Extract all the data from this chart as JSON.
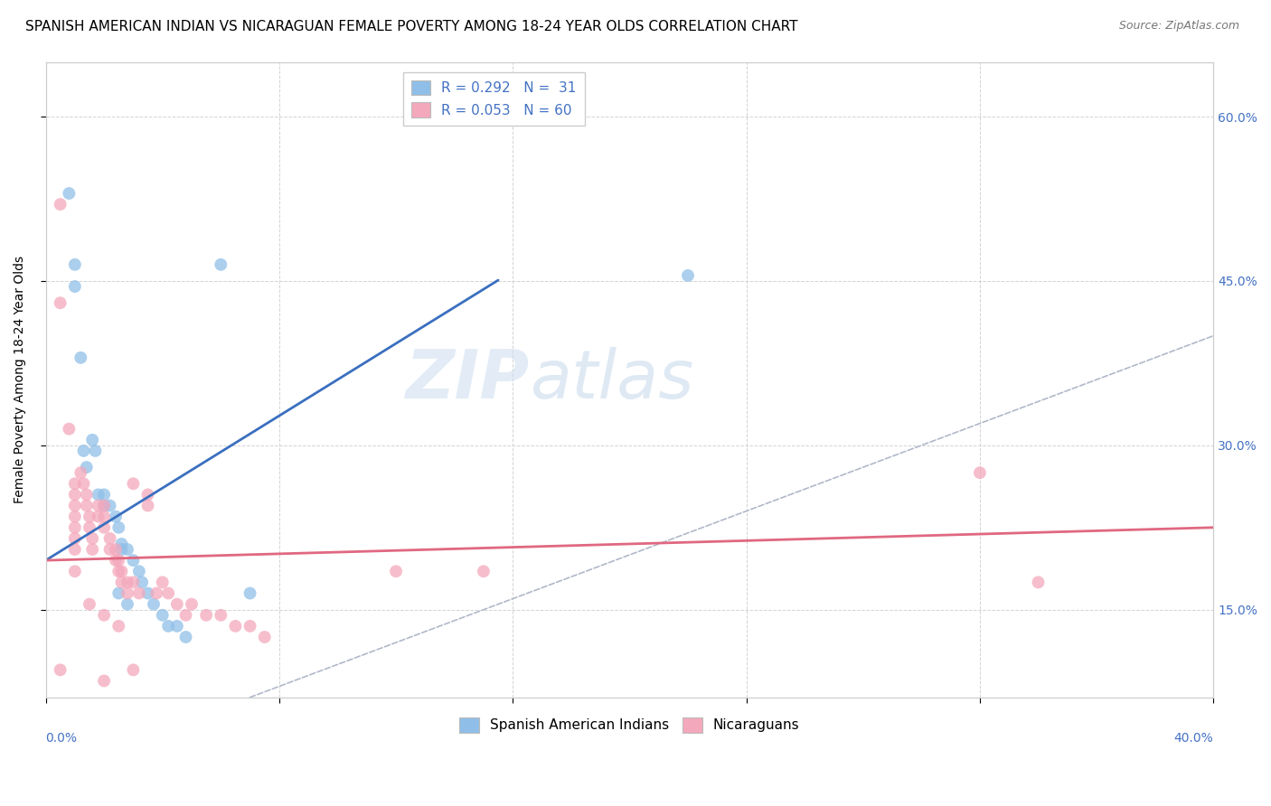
{
  "title": "SPANISH AMERICAN INDIAN VS NICARAGUAN FEMALE POVERTY AMONG 18-24 YEAR OLDS CORRELATION CHART",
  "source": "Source: ZipAtlas.com",
  "ylabel": "Female Poverty Among 18-24 Year Olds",
  "ytick_labels_right": [
    "15.0%",
    "30.0%",
    "45.0%",
    "60.0%"
  ],
  "ytick_values": [
    0.15,
    0.3,
    0.45,
    0.6
  ],
  "xlim": [
    0.0,
    0.4
  ],
  "ylim": [
    0.07,
    0.65
  ],
  "watermark_zip": "ZIP",
  "watermark_atlas": "atlas",
  "series1_name": "Spanish American Indians",
  "series2_name": "Nicaraguans",
  "blue_color": "#8fbfe8",
  "pink_color": "#f4a8bc",
  "blue_line_color": "#3a6fbf",
  "pink_line_color": "#e06880",
  "ref_line_color": "#b0b8c8",
  "legend_label1": "R = 0.292   N =  31",
  "legend_label2": "R = 0.053   N = 60",
  "blue_points": [
    [
      0.008,
      0.53
    ],
    [
      0.01,
      0.465
    ],
    [
      0.01,
      0.445
    ],
    [
      0.012,
      0.38
    ],
    [
      0.013,
      0.295
    ],
    [
      0.014,
      0.28
    ],
    [
      0.016,
      0.305
    ],
    [
      0.017,
      0.295
    ],
    [
      0.018,
      0.255
    ],
    [
      0.02,
      0.255
    ],
    [
      0.02,
      0.245
    ],
    [
      0.022,
      0.245
    ],
    [
      0.024,
      0.235
    ],
    [
      0.025,
      0.225
    ],
    [
      0.026,
      0.21
    ],
    [
      0.026,
      0.205
    ],
    [
      0.028,
      0.205
    ],
    [
      0.03,
      0.195
    ],
    [
      0.032,
      0.185
    ],
    [
      0.033,
      0.175
    ],
    [
      0.035,
      0.165
    ],
    [
      0.037,
      0.155
    ],
    [
      0.04,
      0.145
    ],
    [
      0.042,
      0.135
    ],
    [
      0.045,
      0.135
    ],
    [
      0.048,
      0.125
    ],
    [
      0.06,
      0.465
    ],
    [
      0.07,
      0.165
    ],
    [
      0.025,
      0.165
    ],
    [
      0.028,
      0.155
    ],
    [
      0.22,
      0.455
    ]
  ],
  "pink_points": [
    [
      0.005,
      0.52
    ],
    [
      0.005,
      0.43
    ],
    [
      0.008,
      0.315
    ],
    [
      0.01,
      0.265
    ],
    [
      0.01,
      0.255
    ],
    [
      0.01,
      0.245
    ],
    [
      0.01,
      0.235
    ],
    [
      0.01,
      0.225
    ],
    [
      0.01,
      0.215
    ],
    [
      0.01,
      0.205
    ],
    [
      0.012,
      0.275
    ],
    [
      0.013,
      0.265
    ],
    [
      0.014,
      0.255
    ],
    [
      0.014,
      0.245
    ],
    [
      0.015,
      0.235
    ],
    [
      0.015,
      0.225
    ],
    [
      0.016,
      0.215
    ],
    [
      0.016,
      0.205
    ],
    [
      0.018,
      0.245
    ],
    [
      0.018,
      0.235
    ],
    [
      0.02,
      0.245
    ],
    [
      0.02,
      0.235
    ],
    [
      0.02,
      0.225
    ],
    [
      0.022,
      0.215
    ],
    [
      0.022,
      0.205
    ],
    [
      0.024,
      0.205
    ],
    [
      0.024,
      0.195
    ],
    [
      0.025,
      0.195
    ],
    [
      0.025,
      0.185
    ],
    [
      0.026,
      0.185
    ],
    [
      0.026,
      0.175
    ],
    [
      0.028,
      0.175
    ],
    [
      0.028,
      0.165
    ],
    [
      0.03,
      0.265
    ],
    [
      0.03,
      0.175
    ],
    [
      0.032,
      0.165
    ],
    [
      0.035,
      0.255
    ],
    [
      0.035,
      0.245
    ],
    [
      0.038,
      0.165
    ],
    [
      0.04,
      0.175
    ],
    [
      0.042,
      0.165
    ],
    [
      0.045,
      0.155
    ],
    [
      0.048,
      0.145
    ],
    [
      0.05,
      0.155
    ],
    [
      0.055,
      0.145
    ],
    [
      0.06,
      0.145
    ],
    [
      0.065,
      0.135
    ],
    [
      0.07,
      0.135
    ],
    [
      0.075,
      0.125
    ],
    [
      0.01,
      0.185
    ],
    [
      0.015,
      0.155
    ],
    [
      0.02,
      0.145
    ],
    [
      0.025,
      0.135
    ],
    [
      0.03,
      0.095
    ],
    [
      0.12,
      0.185
    ],
    [
      0.15,
      0.185
    ],
    [
      0.32,
      0.275
    ],
    [
      0.34,
      0.175
    ],
    [
      0.005,
      0.095
    ],
    [
      0.02,
      0.085
    ]
  ],
  "blue_line_x": [
    0.0,
    0.155
  ],
  "blue_line_y_start": 0.195,
  "blue_line_slope": 1.65,
  "pink_line_x": [
    0.0,
    0.4
  ],
  "pink_line_y_start": 0.195,
  "pink_line_slope": 0.075,
  "ref_line_x": [
    0.07,
    0.65
  ],
  "background_color": "#ffffff",
  "grid_color": "#c8c8c8",
  "text_color_blue": "#4472c4",
  "title_fontsize": 11,
  "axis_label_fontsize": 10,
  "tick_fontsize": 10,
  "marker_size": 100
}
